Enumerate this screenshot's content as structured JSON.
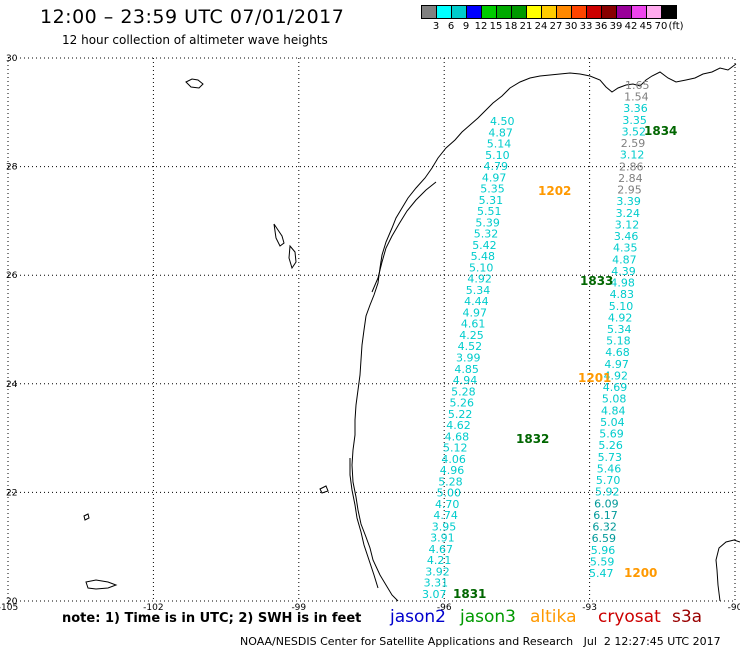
{
  "header": {
    "title": "12:00 – 23:59 UTC 07/01/2017",
    "subtitle": "12 hour collection of altimeter wave heights"
  },
  "colorbar": {
    "colors": [
      "#808080",
      "#00ffff",
      "#00cccc",
      "#0000ff",
      "#00cc00",
      "#00aa00",
      "#009900",
      "#ffff00",
      "#ffcc00",
      "#ff8800",
      "#ff4400",
      "#cc0000",
      "#880000",
      "#990099",
      "#ee44ee",
      "#ffaaee",
      "#000000"
    ],
    "labels": [
      "3",
      "6",
      "9",
      "12",
      "15",
      "18",
      "21",
      "24",
      "27",
      "30",
      "33",
      "36",
      "39",
      "42",
      "45",
      "70",
      "(ft)"
    ]
  },
  "map": {
    "lon_ticks": [
      "-105",
      "-102",
      "-99",
      "-96",
      "-93",
      "-90"
    ],
    "lat_ticks": [
      "20",
      "22",
      "24",
      "26",
      "28",
      "30"
    ],
    "passes": [
      {
        "label": "1834",
        "color": "#006600"
      },
      {
        "label": "1202",
        "color": "#ff9900"
      },
      {
        "label": "1833",
        "color": "#006600"
      },
      {
        "label": "1201",
        "color": "#ff9900"
      },
      {
        "label": "1832",
        "color": "#006600"
      },
      {
        "label": "1200",
        "color": "#ff9900"
      },
      {
        "label": "1831",
        "color": "#006600"
      }
    ],
    "track_jason3_south": [
      "4.50",
      "4.87",
      "5.14",
      "5.10",
      "4.79",
      "4.97",
      "5.35",
      "5.31",
      "5.51",
      "5.39",
      "5.32",
      "5.42",
      "5.48",
      "5.10",
      "4.92",
      "5.34",
      "4.44",
      "4.97",
      "4.61",
      "4.25",
      "4.52",
      "3.99",
      "4.85",
      "4.94",
      "5.28",
      "5.26",
      "5.22",
      "4.62",
      "4.68",
      "5.12",
      "4.06",
      "4.96",
      "5.28",
      "5.00",
      "4.70",
      "4.74",
      "3.95",
      "3.91",
      "4.67",
      "4.21",
      "3.92",
      "3.31",
      "3.07"
    ],
    "track_altika_north": [
      "1.65",
      "1.54",
      "3.36",
      "3.35",
      "3.52",
      "2.59",
      "3.12",
      "2.86",
      "2.84",
      "2.95",
      "3.39",
      "3.24",
      "3.12",
      "3.46",
      "4.35",
      "4.87",
      "4.39",
      "4.98",
      "4.83",
      "5.10",
      "4.92",
      "5.34",
      "5.18",
      "4.68",
      "4.97",
      "4.92",
      "4.69",
      "5.08",
      "4.84",
      "5.04",
      "5.69",
      "5.26",
      "5.73",
      "5.46",
      "5.70",
      "5.92",
      "6.09",
      "6.17",
      "6.32",
      "6.59",
      "5.96",
      "5.59",
      "5.47"
    ]
  },
  "footer": {
    "note": "note: 1) Time is in UTC; 2) SWH is in feet",
    "satellites": [
      {
        "name": "jason2",
        "color": "#0000cc"
      },
      {
        "name": "jason3",
        "color": "#009900"
      },
      {
        "name": "altika",
        "color": "#ff9900"
      },
      {
        "name": "cryosat",
        "color": "#cc0000"
      },
      {
        "name": "s3a",
        "color": "#990000"
      }
    ],
    "credit": "NOAA/NESDIS Center for Satellite Applications and Research   Jul  2 12:27:45 UTC 2017"
  }
}
